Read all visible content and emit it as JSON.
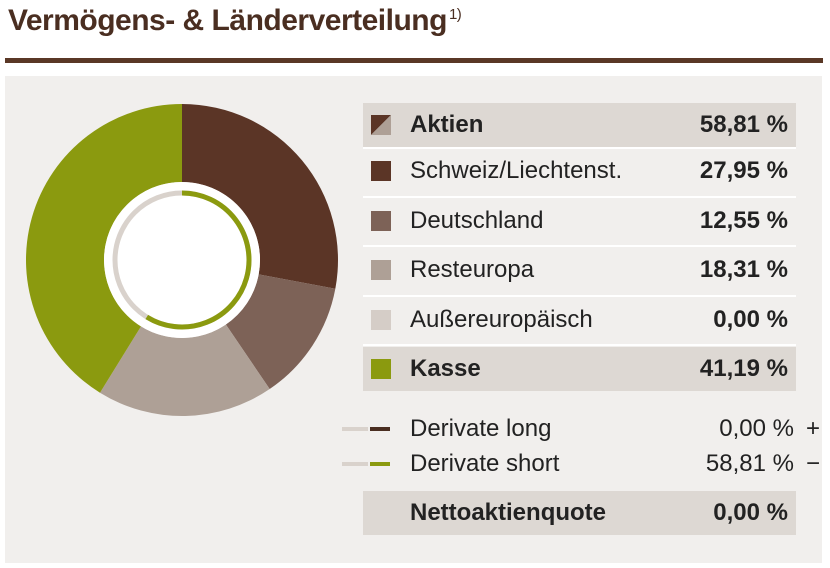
{
  "header": {
    "title": "Vermögens- & Länderverteilung",
    "footnote": "1)"
  },
  "colors": {
    "aktien_brown": "#5b3526",
    "schweiz": "#5b3526",
    "deutschland": "#7d6257",
    "resteuropa": "#aea096",
    "aussereuropaeisch": "#d5cdc7",
    "kasse": "#8b9a0f",
    "derivate_long": "#4a2e21",
    "derivate_short": "#8b9a0f",
    "light_line": "#d9d2cc"
  },
  "rows": [
    {
      "label": "Aktien",
      "value": "58,81 %",
      "icon": "split-swatch-icon"
    },
    {
      "label": "Schweiz/Liechtenst.",
      "value": "27,95 %"
    },
    {
      "label": "Deutschland",
      "value": "12,55 %"
    },
    {
      "label": "Resteuropa",
      "value": "18,31 %"
    },
    {
      "label": "Außereuropäisch",
      "value": "0,00 %"
    },
    {
      "label": "Kasse",
      "value": "41,19 %"
    }
  ],
  "derivatives": [
    {
      "label": "Derivate long",
      "value": "0,00 %",
      "sign": "+"
    },
    {
      "label": "Derivate short",
      "value": "58,81 %",
      "sign": "−"
    }
  ],
  "net": {
    "label": "Nettoaktienquote",
    "value": "0,00 %"
  },
  "chart_data": {
    "type": "pie",
    "categories": [
      "Schweiz/Liechtenst.",
      "Deutschland",
      "Resteuropa",
      "Außereuropäisch",
      "Kasse"
    ],
    "values": [
      27.95,
      12.55,
      18.31,
      0.0,
      41.19
    ],
    "inner_ring": {
      "categories": [
        "Derivate long",
        "Derivate short"
      ],
      "values": [
        0.0,
        58.81
      ]
    }
  }
}
